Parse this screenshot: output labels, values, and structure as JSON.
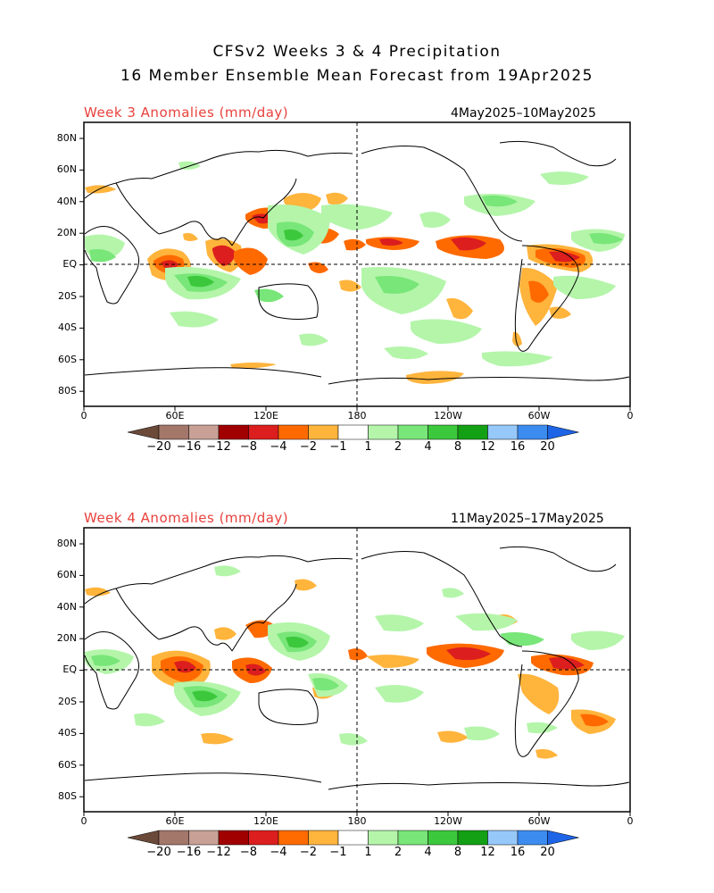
{
  "title_line1": "CFSv2 Weeks 3 & 4 Precipitation",
  "title_line2": "16 Member Ensemble Mean Forecast from 19Apr2025",
  "panels": [
    {
      "label": "Week 3 Anomalies (mm/day)",
      "period": "4May2025–10May2025"
    },
    {
      "label": "Week 4 Anomalies (mm/day)",
      "period": "11May2025–17May2025"
    }
  ],
  "lat_labels": [
    "80N",
    "60N",
    "40N",
    "20N",
    "EQ",
    "20S",
    "40S",
    "60S",
    "80S"
  ],
  "lon_labels": [
    "0",
    "60E",
    "120E",
    "180",
    "120W",
    "60W",
    "0"
  ],
  "colorbar_labels": [
    "−20",
    "−16",
    "−12",
    "−8",
    "−4",
    "−2",
    "−1",
    "1",
    "2",
    "4",
    "8",
    "12",
    "16",
    "20"
  ],
  "label_color": "#e8413c",
  "colorbar_colors": [
    "#6b4a3a",
    "#a3776a",
    "#c8a096",
    "#a00000",
    "#dc1e1e",
    "#ff6a00",
    "#ffb43c",
    "#ffffff",
    "#b4f5aa",
    "#78e678",
    "#3cc83c",
    "#14a014",
    "#96c8fa",
    "#3c8cf0",
    "#1e64e6"
  ]
}
